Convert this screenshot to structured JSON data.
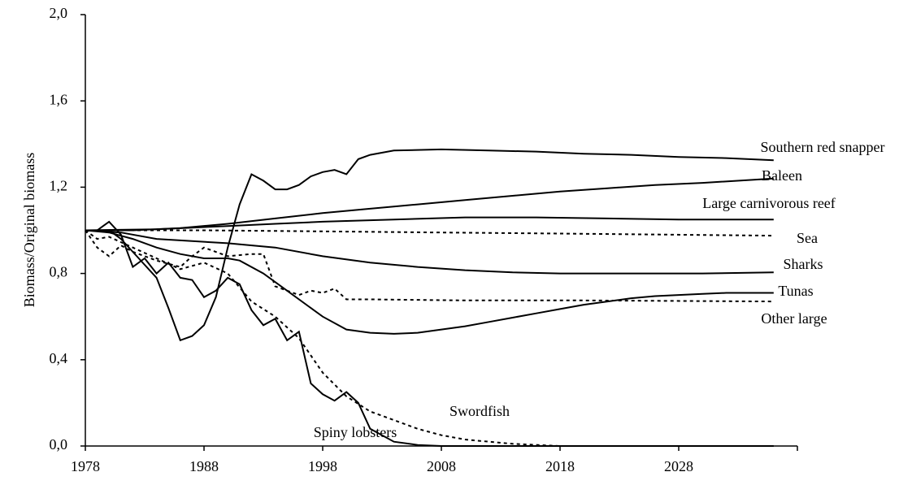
{
  "chart_data": {
    "type": "line",
    "y_label": "Biomass/Original biomass",
    "xlim": [
      1978,
      2038
    ],
    "xticks": [
      1978,
      1988,
      1998,
      2008,
      2018,
      2028
    ],
    "ylim": [
      0,
      2
    ],
    "yticks": [
      {
        "value": 0,
        "label": "0,0"
      },
      {
        "value": 0.4,
        "label": "0,4"
      },
      {
        "value": 0.8,
        "label": "0,8"
      },
      {
        "value": 1.2,
        "label": "1,2"
      },
      {
        "value": 1.6,
        "label": "1,6"
      },
      {
        "value": 2,
        "label": "2,0"
      }
    ],
    "grid": false,
    "series": [
      {
        "name": "Southern red snapper",
        "color": "#000000",
        "style": "solid",
        "x": [
          1978,
          1979,
          1980,
          1981,
          1982,
          1983,
          1984,
          1985,
          1986,
          1987,
          1988,
          1989,
          1990,
          1991,
          1992,
          1993,
          1994,
          1995,
          1996,
          1997,
          1998,
          1999,
          2000,
          2001,
          2002,
          2004,
          2008,
          2012,
          2016,
          2020,
          2024,
          2028,
          2032,
          2036
        ],
        "values": [
          1.0,
          1.0,
          1.0,
          0.96,
          0.9,
          0.84,
          0.78,
          0.64,
          0.49,
          0.51,
          0.56,
          0.69,
          0.92,
          1.12,
          1.26,
          1.23,
          1.19,
          1.19,
          1.21,
          1.25,
          1.27,
          1.28,
          1.26,
          1.33,
          1.35,
          1.37,
          1.375,
          1.37,
          1.365,
          1.355,
          1.35,
          1.34,
          1.335,
          1.325
        ]
      },
      {
        "name": "Baleen",
        "color": "#000000",
        "style": "solid",
        "x": [
          1978,
          1982,
          1986,
          1990,
          1994,
          1998,
          2002,
          2006,
          2010,
          2014,
          2018,
          2022,
          2026,
          2030,
          2036
        ],
        "values": [
          1.0,
          1.0,
          1.01,
          1.03,
          1.055,
          1.08,
          1.1,
          1.12,
          1.14,
          1.16,
          1.18,
          1.195,
          1.21,
          1.22,
          1.24
        ]
      },
      {
        "name": "Large carnivorous reef",
        "color": "#000000",
        "style": "solid",
        "x": [
          1978,
          1984,
          1990,
          1994,
          1998,
          2004,
          2010,
          2016,
          2022,
          2028,
          2036
        ],
        "values": [
          1.0,
          1.005,
          1.02,
          1.03,
          1.04,
          1.05,
          1.06,
          1.06,
          1.055,
          1.05,
          1.05
        ]
      },
      {
        "name": "Sea",
        "color": "#000000",
        "style": "dotted",
        "x": [
          1978,
          1988,
          1998,
          2008,
          2018,
          2036
        ],
        "values": [
          1.0,
          1.0,
          0.995,
          0.99,
          0.985,
          0.975
        ]
      },
      {
        "name": "Sharks",
        "color": "#000000",
        "style": "solid",
        "x": [
          1978,
          1981,
          1984,
          1987,
          1990,
          1994,
          1998,
          2002,
          2006,
          2010,
          2014,
          2018,
          2024,
          2030,
          2036
        ],
        "values": [
          1.0,
          0.99,
          0.96,
          0.95,
          0.94,
          0.92,
          0.88,
          0.85,
          0.83,
          0.815,
          0.805,
          0.8,
          0.8,
          0.8,
          0.805
        ]
      },
      {
        "name": "Tunas",
        "color": "#000000",
        "style": "solid",
        "x": [
          1978,
          1980,
          1982,
          1984,
          1986,
          1988,
          1990,
          1991,
          1993,
          1995,
          1997,
          1998,
          2000,
          2002,
          2004,
          2006,
          2008,
          2010,
          2012,
          2014,
          2016,
          2018,
          2020,
          2022,
          2024,
          2026,
          2028,
          2030,
          2032,
          2034,
          2036
        ],
        "values": [
          1.0,
          0.99,
          0.96,
          0.92,
          0.89,
          0.87,
          0.87,
          0.86,
          0.8,
          0.72,
          0.64,
          0.6,
          0.54,
          0.525,
          0.52,
          0.525,
          0.54,
          0.555,
          0.575,
          0.595,
          0.615,
          0.635,
          0.655,
          0.67,
          0.685,
          0.695,
          0.7,
          0.705,
          0.71,
          0.71,
          0.71
        ]
      },
      {
        "name": "Other large",
        "color": "#000000",
        "style": "dotted",
        "x": [
          1978,
          1979,
          1980,
          1981,
          1982,
          1984,
          1986,
          1987,
          1988,
          1990,
          1992,
          1993,
          1994,
          1996,
          1997,
          1998,
          1999,
          2000,
          2002,
          2010,
          2020,
          2036
        ],
        "values": [
          1.0,
          0.92,
          0.88,
          0.93,
          0.9,
          0.86,
          0.83,
          0.88,
          0.92,
          0.88,
          0.89,
          0.89,
          0.74,
          0.7,
          0.72,
          0.71,
          0.73,
          0.68,
          0.68,
          0.675,
          0.675,
          0.67
        ]
      },
      {
        "name": "Swordfish",
        "color": "#000000",
        "style": "dotted",
        "x": [
          1978,
          1979,
          1980,
          1982,
          1984,
          1986,
          1988,
          1990,
          1992,
          1994,
          1996,
          1998,
          2000,
          2002,
          2004,
          2006,
          2008,
          2010,
          2012,
          2014,
          2018,
          2036
        ],
        "values": [
          1.0,
          0.96,
          0.97,
          0.92,
          0.87,
          0.82,
          0.85,
          0.8,
          0.67,
          0.6,
          0.5,
          0.34,
          0.23,
          0.16,
          0.12,
          0.08,
          0.05,
          0.03,
          0.02,
          0.01,
          0.0,
          0.0
        ]
      },
      {
        "name": "Spiny lobsters",
        "color": "#000000",
        "style": "solid",
        "x": [
          1978,
          1979,
          1980,
          1981,
          1982,
          1983,
          1984,
          1985,
          1986,
          1987,
          1988,
          1989,
          1990,
          1991,
          1992,
          1993,
          1994,
          1995,
          1996,
          1997,
          1998,
          1999,
          2000,
          2001,
          2002,
          2004,
          2006,
          2008,
          2036
        ],
        "values": [
          1.0,
          1.0,
          1.04,
          0.98,
          0.83,
          0.87,
          0.8,
          0.85,
          0.78,
          0.77,
          0.69,
          0.72,
          0.78,
          0.75,
          0.63,
          0.56,
          0.59,
          0.49,
          0.53,
          0.29,
          0.24,
          0.21,
          0.25,
          0.2,
          0.08,
          0.02,
          0.005,
          0.0,
          0.0
        ]
      }
    ]
  }
}
